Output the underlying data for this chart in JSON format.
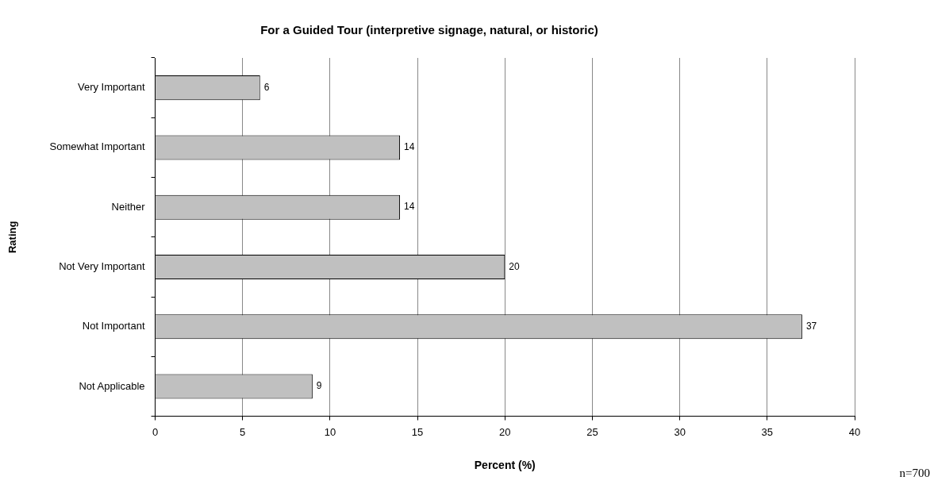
{
  "chart_data": {
    "type": "bar",
    "orientation": "horizontal",
    "title": "For a Guided Tour (interpretive signage, natural, or historic)",
    "xlabel": "Percent (%)",
    "ylabel": "Rating",
    "categories": [
      "Very Important",
      "Somewhat Important",
      "Neither",
      "Not Very Important",
      "Not Important",
      "Not Applicable"
    ],
    "values": [
      6,
      14,
      14,
      20,
      37,
      9
    ],
    "color": "#c0c0c0",
    "xlim": [
      0,
      40
    ],
    "xticks": [
      0,
      5,
      10,
      15,
      20,
      25,
      30,
      35,
      40
    ],
    "grid": "x",
    "data_labels": true,
    "legend": false,
    "annotations": [
      "n=700"
    ]
  }
}
